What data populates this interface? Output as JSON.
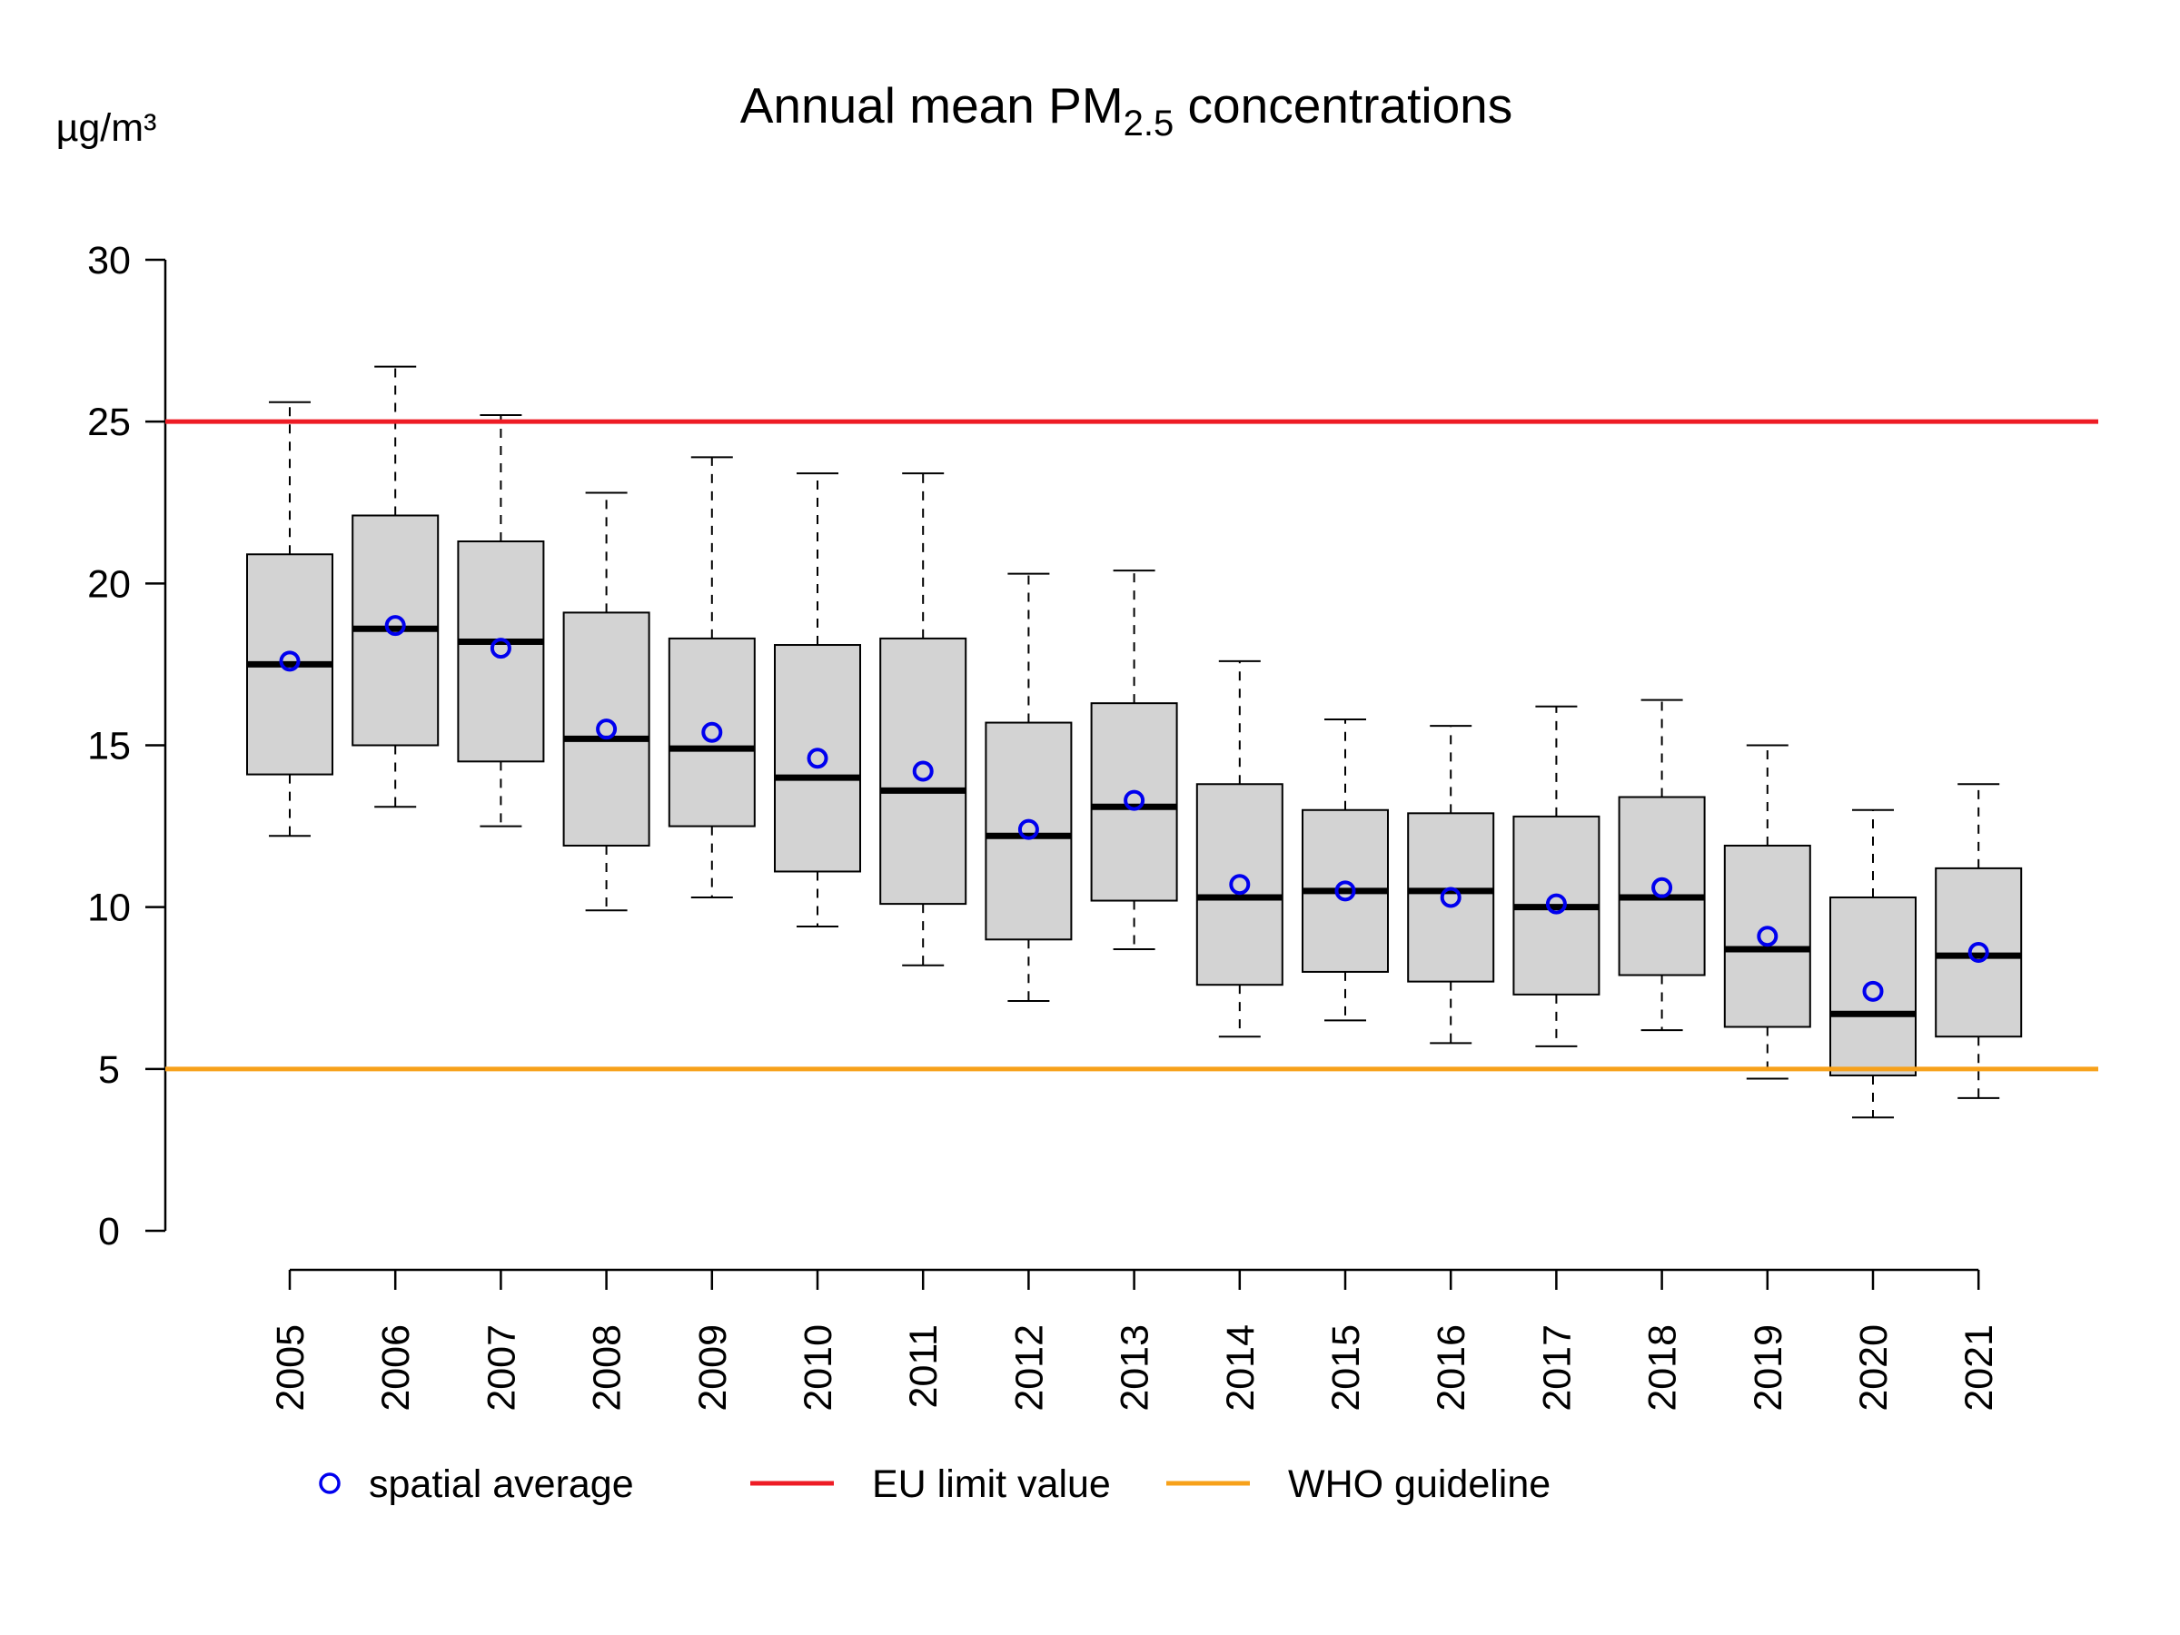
{
  "chart_data": {
    "type": "box",
    "title": "Annual mean PM",
    "title_subscript": "2.5",
    "title_suffix": " concentrations",
    "ylabel": "µg/m³",
    "xlabel": "",
    "ylim": [
      0,
      30
    ],
    "yticks": [
      0,
      5,
      10,
      15,
      20,
      25,
      30
    ],
    "grid": false,
    "categories": [
      "2005",
      "2006",
      "2007",
      "2008",
      "2009",
      "2010",
      "2011",
      "2012",
      "2013",
      "2014",
      "2015",
      "2016",
      "2017",
      "2018",
      "2019",
      "2020",
      "2021"
    ],
    "boxes": [
      {
        "year": "2005",
        "whisker_low": 12.2,
        "q1": 14.1,
        "median": 17.5,
        "q3": 20.9,
        "whisker_high": 25.6,
        "mean": 17.6
      },
      {
        "year": "2006",
        "whisker_low": 13.1,
        "q1": 15.0,
        "median": 18.6,
        "q3": 22.1,
        "whisker_high": 26.7,
        "mean": 18.7
      },
      {
        "year": "2007",
        "whisker_low": 12.5,
        "q1": 14.5,
        "median": 18.2,
        "q3": 21.3,
        "whisker_high": 25.2,
        "mean": 18.0
      },
      {
        "year": "2008",
        "whisker_low": 9.9,
        "q1": 11.9,
        "median": 15.2,
        "q3": 19.1,
        "whisker_high": 22.8,
        "mean": 15.5
      },
      {
        "year": "2009",
        "whisker_low": 10.3,
        "q1": 12.5,
        "median": 14.9,
        "q3": 18.3,
        "whisker_high": 23.9,
        "mean": 15.4
      },
      {
        "year": "2010",
        "whisker_low": 9.4,
        "q1": 11.1,
        "median": 14.0,
        "q3": 18.1,
        "whisker_high": 23.4,
        "mean": 14.6
      },
      {
        "year": "2011",
        "whisker_low": 8.2,
        "q1": 10.1,
        "median": 13.6,
        "q3": 18.3,
        "whisker_high": 23.4,
        "mean": 14.2
      },
      {
        "year": "2012",
        "whisker_low": 7.1,
        "q1": 9.0,
        "median": 12.2,
        "q3": 15.7,
        "whisker_high": 20.3,
        "mean": 12.4
      },
      {
        "year": "2013",
        "whisker_low": 8.7,
        "q1": 10.2,
        "median": 13.1,
        "q3": 16.3,
        "whisker_high": 20.4,
        "mean": 13.3
      },
      {
        "year": "2014",
        "whisker_low": 6.0,
        "q1": 7.6,
        "median": 10.3,
        "q3": 13.8,
        "whisker_high": 17.6,
        "mean": 10.7
      },
      {
        "year": "2015",
        "whisker_low": 6.5,
        "q1": 8.0,
        "median": 10.5,
        "q3": 13.0,
        "whisker_high": 15.8,
        "mean": 10.5
      },
      {
        "year": "2016",
        "whisker_low": 5.8,
        "q1": 7.7,
        "median": 10.5,
        "q3": 12.9,
        "whisker_high": 15.6,
        "mean": 10.3
      },
      {
        "year": "2017",
        "whisker_low": 5.7,
        "q1": 7.3,
        "median": 10.0,
        "q3": 12.8,
        "whisker_high": 16.2,
        "mean": 10.1
      },
      {
        "year": "2018",
        "whisker_low": 6.2,
        "q1": 7.9,
        "median": 10.3,
        "q3": 13.4,
        "whisker_high": 16.4,
        "mean": 10.6
      },
      {
        "year": "2019",
        "whisker_low": 4.7,
        "q1": 6.3,
        "median": 8.7,
        "q3": 11.9,
        "whisker_high": 15.0,
        "mean": 9.1
      },
      {
        "year": "2020",
        "whisker_low": 3.5,
        "q1": 4.8,
        "median": 6.7,
        "q3": 10.3,
        "whisker_high": 13.0,
        "mean": 7.4
      },
      {
        "year": "2021",
        "whisker_low": 4.1,
        "q1": 6.0,
        "median": 8.5,
        "q3": 11.2,
        "whisker_high": 13.8,
        "mean": 8.6
      }
    ],
    "reference_lines": [
      {
        "name": "EU limit value",
        "value": 25,
        "color": "#ee1c25"
      },
      {
        "name": "WHO guideline",
        "value": 5,
        "color": "#f7a11a"
      }
    ],
    "legend": {
      "placement": "bottom",
      "entries": [
        {
          "label": "spatial average",
          "symbol": "circle",
          "color": "#0000ee"
        },
        {
          "label": "EU limit value",
          "symbol": "line",
          "color": "#ee1c25"
        },
        {
          "label": "WHO guideline",
          "symbol": "line",
          "color": "#f7a11a"
        }
      ]
    },
    "colors": {
      "box_fill": "#d3d3d3",
      "box_stroke": "#000000",
      "mean_marker": "#0000ee"
    }
  }
}
